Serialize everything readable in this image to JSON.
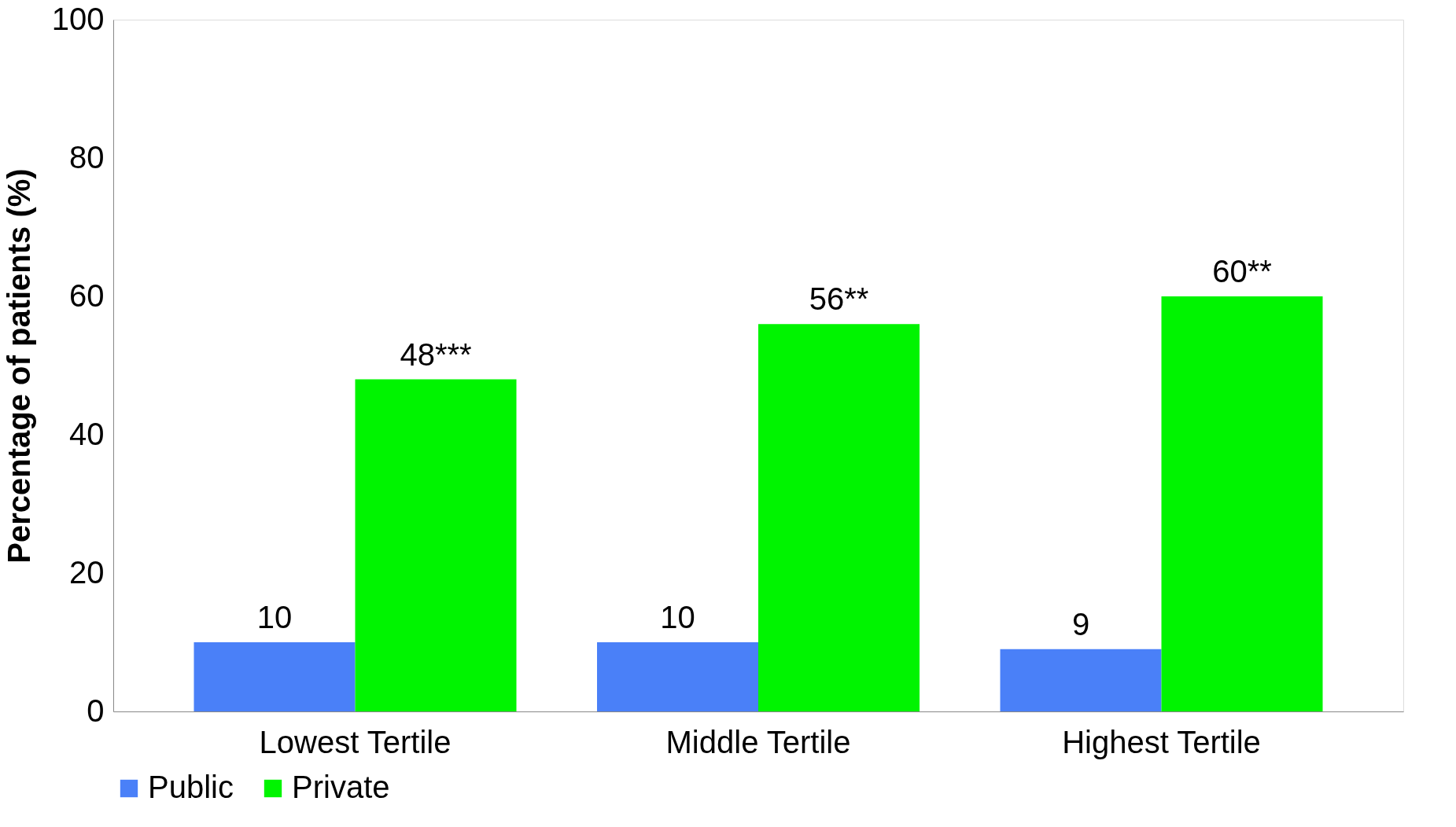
{
  "chart_data": {
    "type": "bar",
    "ylabel": "Percentage of patients (%)",
    "categories": [
      "Lowest Tertile",
      "Middle Tertile",
      "Highest Tertile"
    ],
    "series": [
      {
        "name": "Public",
        "color": "#4a80f8",
        "values": [
          10,
          10,
          9
        ],
        "value_labels": [
          "10",
          "10",
          "9"
        ]
      },
      {
        "name": "Private",
        "color": "#00f400",
        "values": [
          48,
          56,
          60
        ],
        "value_labels": [
          "48***",
          "56**",
          "60**"
        ]
      }
    ],
    "ylim": [
      0,
      100
    ],
    "yticks": [
      0,
      20,
      40,
      60,
      80,
      100
    ],
    "grid": false,
    "legend": "bottom"
  }
}
